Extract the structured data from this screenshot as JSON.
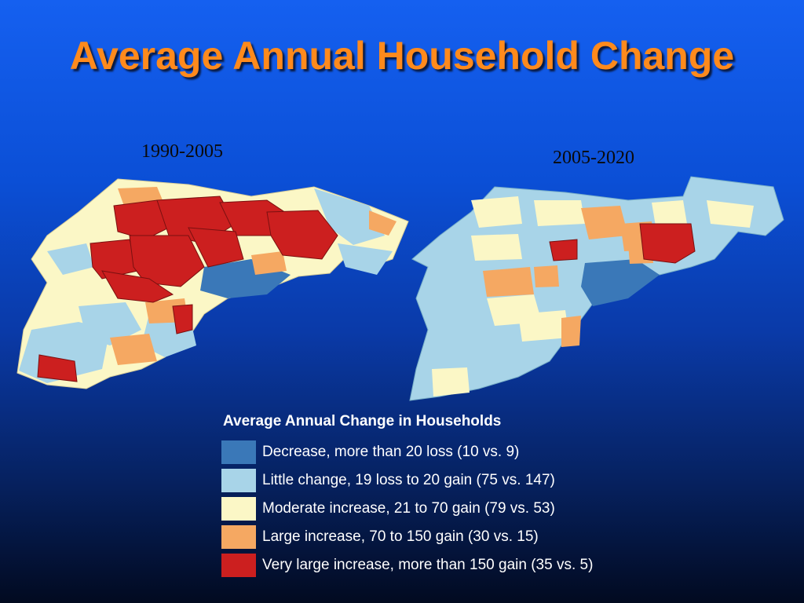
{
  "title": "Average Annual Household Change",
  "maps": [
    {
      "period": "1990-2005"
    },
    {
      "period": "2005-2020"
    }
  ],
  "legend": {
    "title": "Average Annual Change in Households",
    "items": [
      {
        "label": "Decrease, more than 20 loss (10 vs. 9)",
        "color": "#3a78b8"
      },
      {
        "label": "Little change, 19 loss to 20 gain (75 vs. 147)",
        "color": "#a8d4e8"
      },
      {
        "label": "Moderate increase, 21 to 70 gain (79 vs. 53)",
        "color": "#fbf7c6"
      },
      {
        "label": "Large increase, 70 to 150 gain (30 vs. 15)",
        "color": "#f5a862"
      },
      {
        "label": "Very large increase, more than 150 gain (35 vs. 5)",
        "color": "#cc1f1f"
      }
    ]
  }
}
